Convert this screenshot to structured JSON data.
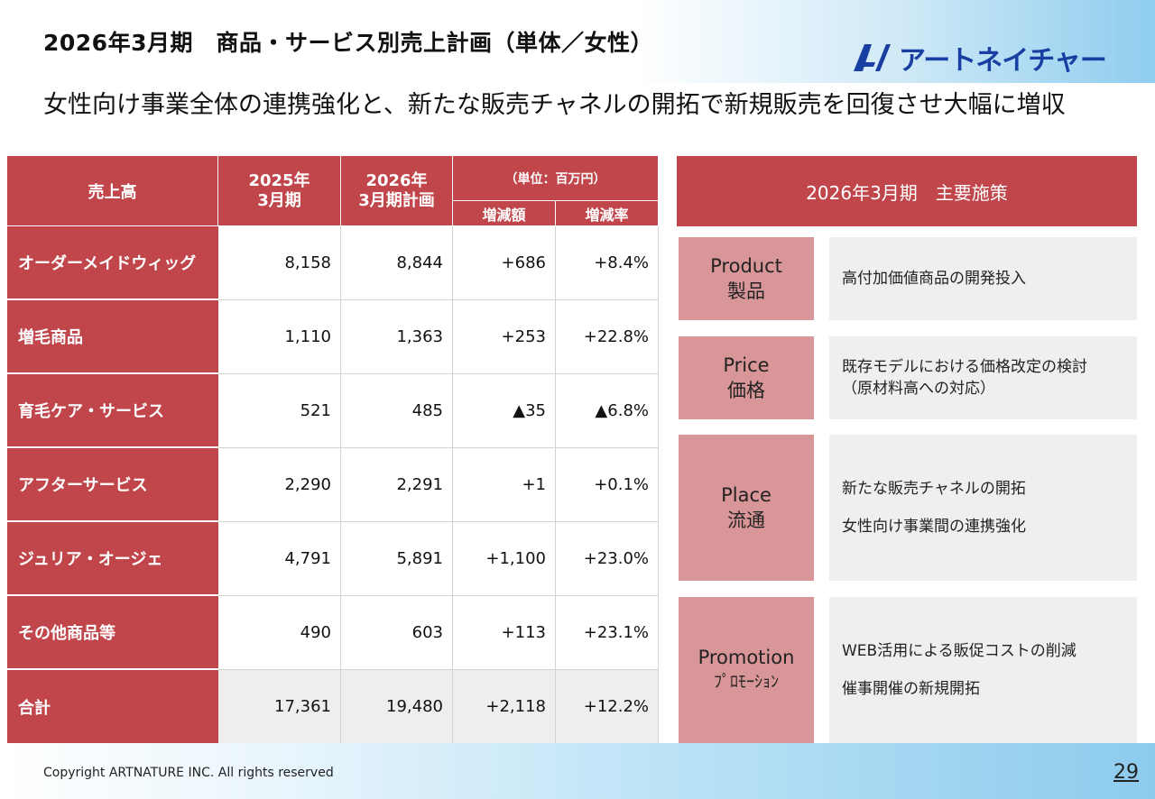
{
  "header": {
    "title": "2026年3月期　商品・サービス別売上計画（単体／女性）",
    "logo_text": "アートネイチャー"
  },
  "subtitle": "女性向け事業全体の連携強化と、新たな販売チャネルの開拓で新規販売を回復させ大幅に増収",
  "table": {
    "col_item": "売上高",
    "col_2025": "2025年\n3月期",
    "col_2026": "2026年\n3月期計画",
    "unit": "（単位：百万円）",
    "col_change": "増減額",
    "col_rate": "増減率",
    "rows": [
      {
        "label": "オーダーメイドウィッグ",
        "v2025": "8,158",
        "v2026": "8,844",
        "change": "+686",
        "rate": "+8.4%"
      },
      {
        "label": "増毛商品",
        "v2025": "1,110",
        "v2026": "1,363",
        "change": "+253",
        "rate": "+22.8%"
      },
      {
        "label": "育毛ケア・サービス",
        "v2025": "521",
        "v2026": "485",
        "change": "▲35",
        "rate": "▲6.8%"
      },
      {
        "label": "アフターサービス",
        "v2025": "2,290",
        "v2026": "2,291",
        "change": "+1",
        "rate": "+0.1%"
      },
      {
        "label": "ジュリア・オージェ",
        "v2025": "4,791",
        "v2026": "5,891",
        "change": "+1,100",
        "rate": "+23.0%"
      },
      {
        "label": "その他商品等",
        "v2025": "490",
        "v2026": "603",
        "change": "+113",
        "rate": "+23.1%"
      },
      {
        "label": "合計",
        "v2025": "17,361",
        "v2026": "19,480",
        "change": "+2,118",
        "rate": "+12.2%"
      }
    ]
  },
  "measures": {
    "title": "2026年3月期　主要施策",
    "items": [
      {
        "en": "Product",
        "ja": "製品",
        "lines": [
          "高付加価値商品の開発投入"
        ]
      },
      {
        "en": "Price",
        "ja": "価格",
        "lines": [
          "既存モデルにおける価格改定の検討",
          "（原材料高への対応）"
        ]
      },
      {
        "en": "Place",
        "ja": "流通",
        "lines": [
          "新たな販売チャネルの開拓",
          "女性向け事業間の連携強化"
        ]
      },
      {
        "en": "Promotion",
        "ja": "ﾌﾟﾛﾓｰｼｮﾝ",
        "lines": [
          "WEB活用による販促コストの削減",
          "催事開催の新規開拓"
        ]
      }
    ]
  },
  "footer": {
    "copyright": "Copyright ARTNATURE INC. All rights reserved",
    "page": "29"
  },
  "colors": {
    "header_red": "#c0464b",
    "pill_pink": "#d99698",
    "logo_blue": "#1a3fa3"
  }
}
